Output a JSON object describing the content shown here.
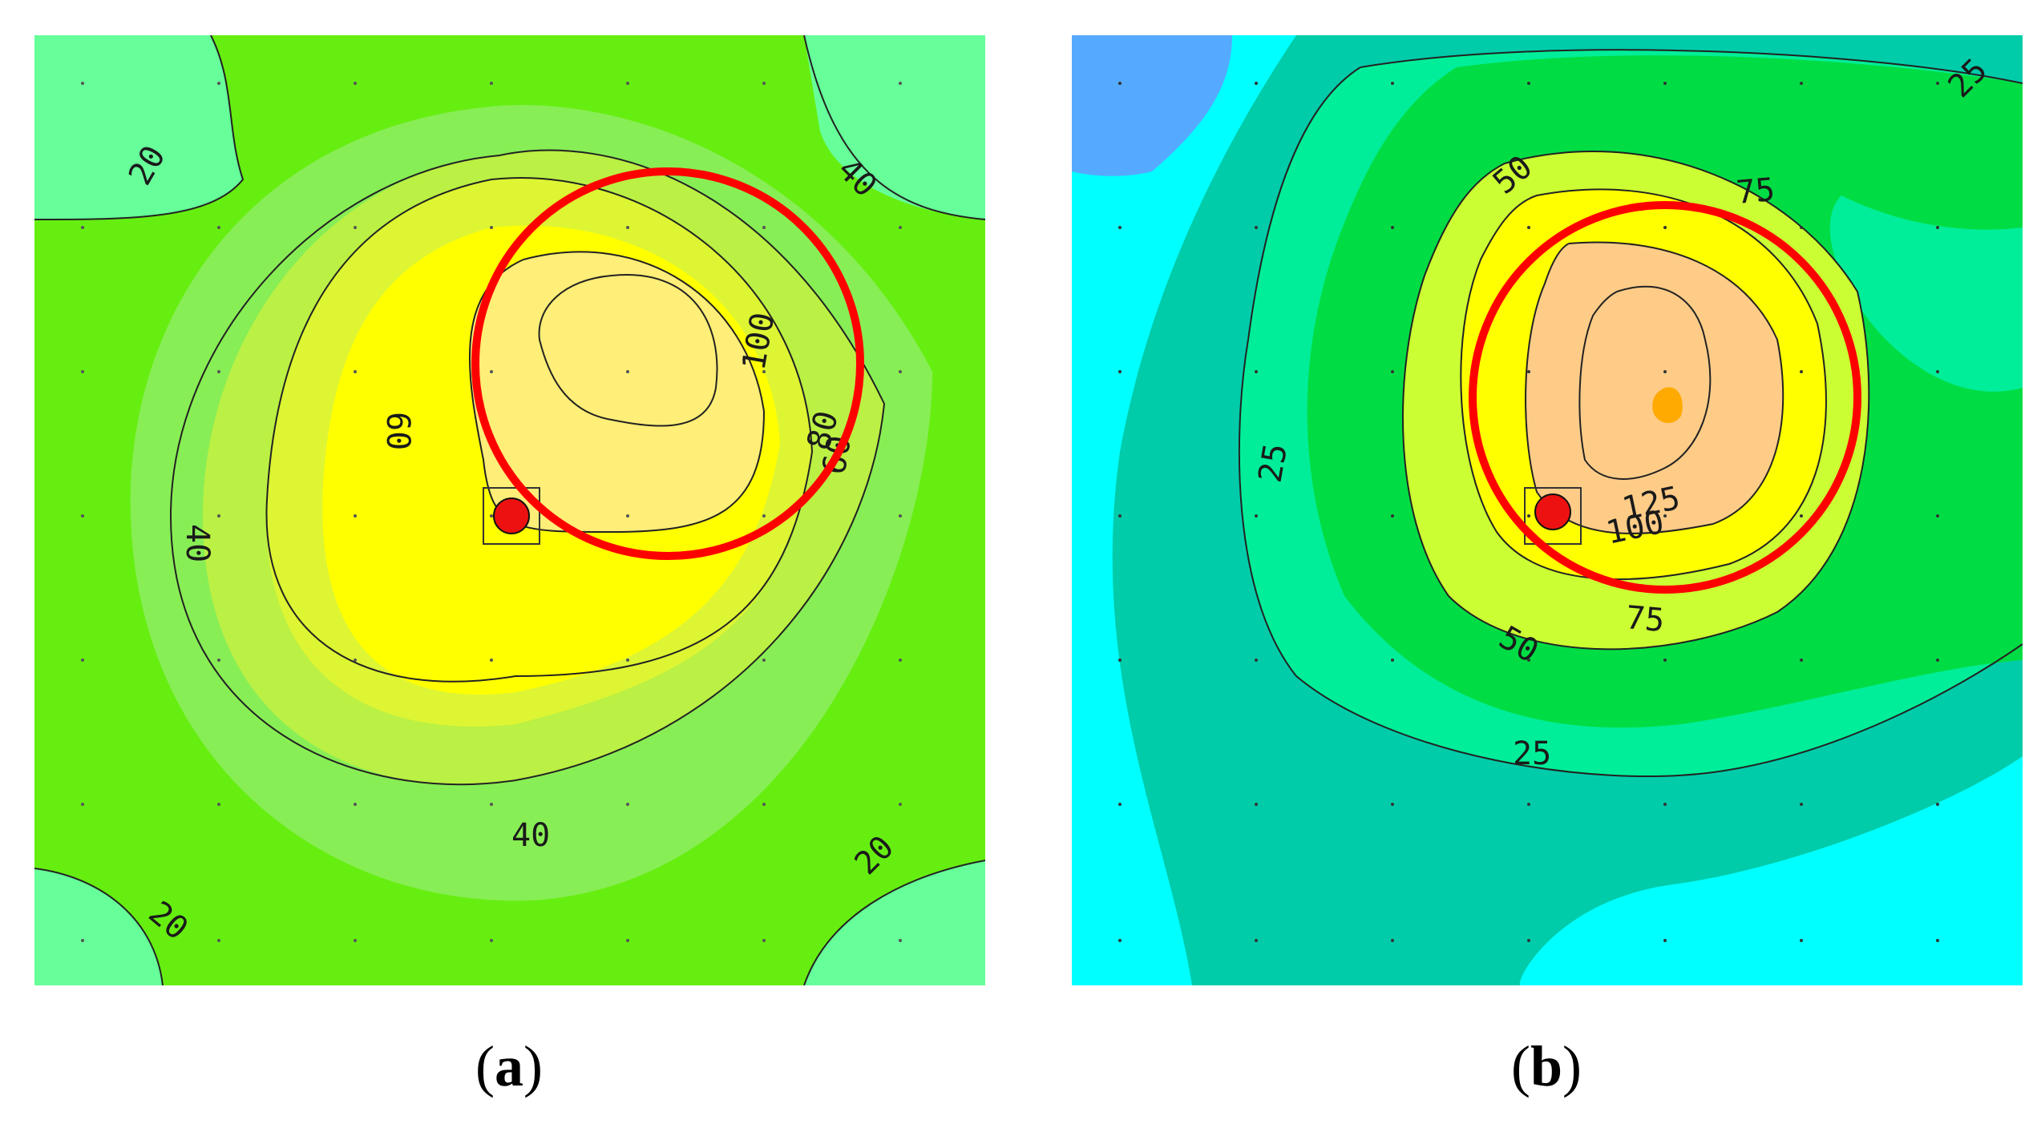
{
  "panels": [
    {
      "id": "a",
      "caption_open": "(",
      "caption_letter": "a",
      "caption_close": ")",
      "contour_labels": [
        "20",
        "40",
        "60",
        "80",
        "100",
        "60",
        "40",
        "40",
        "20",
        "20",
        "40",
        "60",
        "20"
      ],
      "colors": [
        "#66ff99",
        "#88ee55",
        "#66ee11",
        "#bbf044",
        "#ddf533",
        "#ffff00",
        "#ffee77"
      ]
    },
    {
      "id": "b",
      "caption_open": "(",
      "caption_letter": "b",
      "caption_close": ")",
      "contour_labels": [
        "25",
        "50",
        "75",
        "125",
        "100",
        "75",
        "50",
        "25",
        "25",
        "50"
      ],
      "colors": [
        "#00ffff",
        "#00ccaa",
        "#00ee99",
        "#00dd44",
        "#ccff33",
        "#ffff00",
        "#ffcc88",
        "#ffaa00"
      ]
    }
  ]
}
